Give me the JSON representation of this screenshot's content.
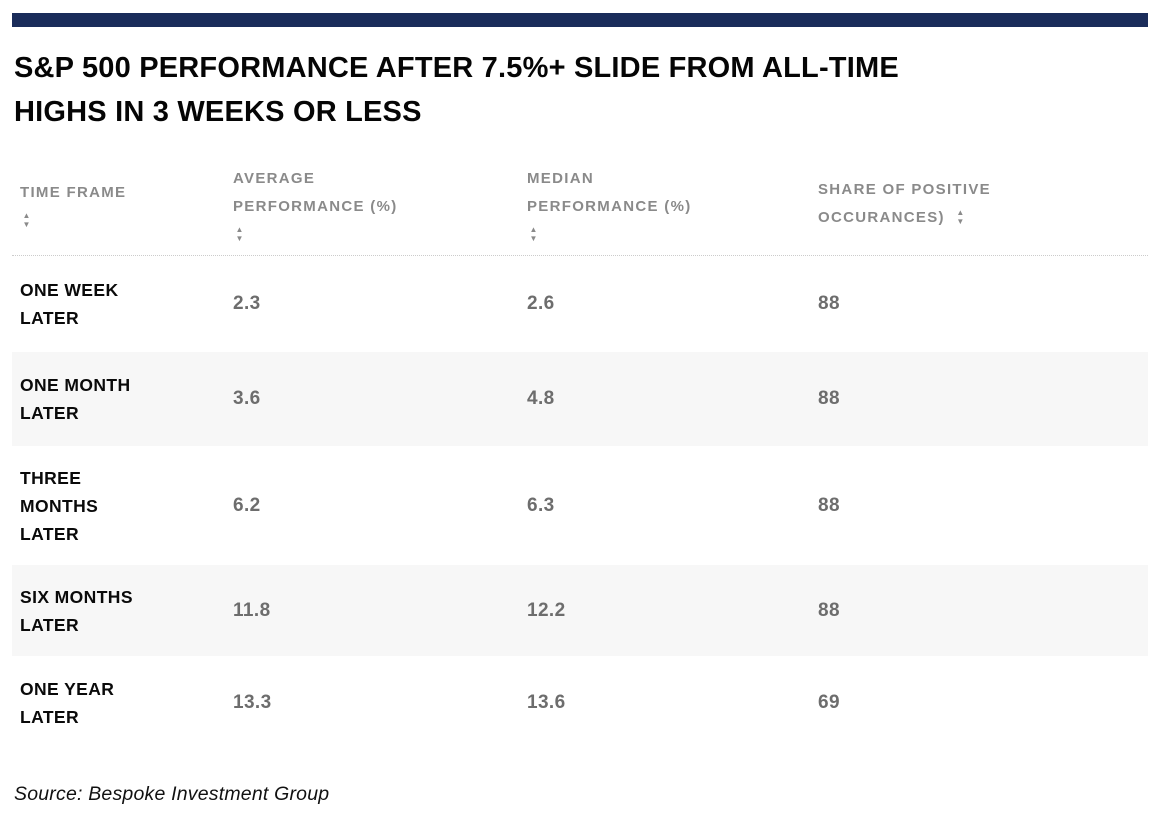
{
  "colors": {
    "accent_bar": "#1a2c5a",
    "alt_row_background": "#f7f7f7",
    "header_text": "#8a8a8a",
    "value_text": "#6d6d6d",
    "label_text": "#0a0a0a"
  },
  "title": "S&P 500 PERFORMANCE AFTER 7.5%+ SLIDE FROM ALL-TIME\nHIGHS IN 3 WEEKS OR LESS",
  "source": "Source: Bespoke Investment Group",
  "icons": {
    "sort_up": "▲",
    "sort_down": "▼"
  },
  "table": {
    "columns": [
      {
        "label": "TIME FRAME",
        "sort_arrows": "below"
      },
      {
        "label": "AVERAGE\nPERFORMANCE (%)",
        "sort_arrows": "below"
      },
      {
        "label": "MEDIAN\nPERFORMANCE (%)",
        "sort_arrows": "below"
      },
      {
        "label": "SHARE OF POSITIVE\nOCCURANCES)",
        "sort_arrows": "inline"
      }
    ],
    "rows": [
      {
        "time_frame": "ONE WEEK\nLATER",
        "average": "2.3",
        "median": "2.6",
        "share": "88"
      },
      {
        "time_frame": "ONE MONTH\nLATER",
        "average": "3.6",
        "median": "4.8",
        "share": "88"
      },
      {
        "time_frame": "THREE\nMONTHS\nLATER",
        "average": "6.2",
        "median": "6.3",
        "share": "88"
      },
      {
        "time_frame": "SIX MONTHS\nLATER",
        "average": "11.8",
        "median": "12.2",
        "share": "88"
      },
      {
        "time_frame": "ONE YEAR\nLATER",
        "average": "13.3",
        "median": "13.6",
        "share": "69"
      }
    ]
  },
  "chart_data": {
    "type": "table",
    "title": "S&P 500 PERFORMANCE AFTER 7.5%+ SLIDE FROM ALL-TIME HIGHS IN 3 WEEKS OR LESS",
    "columns": [
      "TIME FRAME",
      "AVERAGE PERFORMANCE (%)",
      "MEDIAN PERFORMANCE (%)",
      "SHARE OF POSITIVE OCCURANCES)"
    ],
    "rows": [
      [
        "ONE WEEK LATER",
        2.3,
        2.6,
        88
      ],
      [
        "ONE MONTH LATER",
        3.6,
        4.8,
        88
      ],
      [
        "THREE MONTHS LATER",
        6.2,
        6.3,
        88
      ],
      [
        "SIX MONTHS LATER",
        11.8,
        12.2,
        88
      ],
      [
        "ONE YEAR LATER",
        13.3,
        13.6,
        69
      ]
    ],
    "source": "Source: Bespoke Investment Group"
  }
}
